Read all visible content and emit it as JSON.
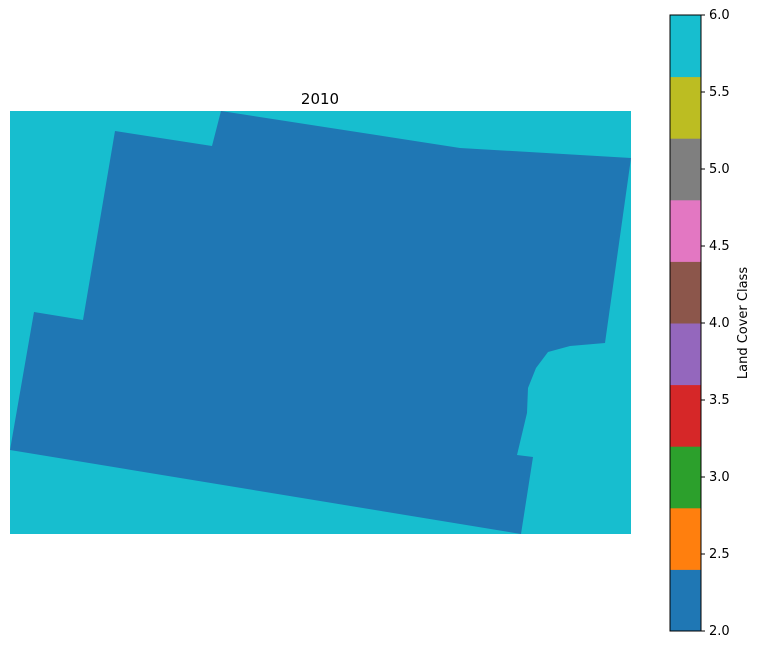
{
  "chart_data": {
    "type": "heatmap",
    "title": "2010",
    "xlabel": "",
    "ylabel": "",
    "axes_visible": false,
    "background_class": 6,
    "regions": [
      {
        "name": "land-region",
        "class": 2
      }
    ],
    "colorbar": {
      "label": "Land Cover Class",
      "vmin": 2.0,
      "vmax": 6.0,
      "tick_values": [
        2.0,
        2.5,
        3.0,
        3.5,
        4.0,
        4.5,
        5.0,
        5.5,
        6.0
      ],
      "tick_labels": [
        "2.0",
        "2.5",
        "3.0",
        "3.5",
        "4.0",
        "4.5",
        "5.0",
        "5.5",
        "6.0"
      ],
      "colors": [
        "#1f77b4",
        "#ff7f0e",
        "#2ca02c",
        "#d62728",
        "#9467bd",
        "#8c564b",
        "#e377c2",
        "#7f7f7f",
        "#bcbd22",
        "#17becf"
      ]
    }
  }
}
